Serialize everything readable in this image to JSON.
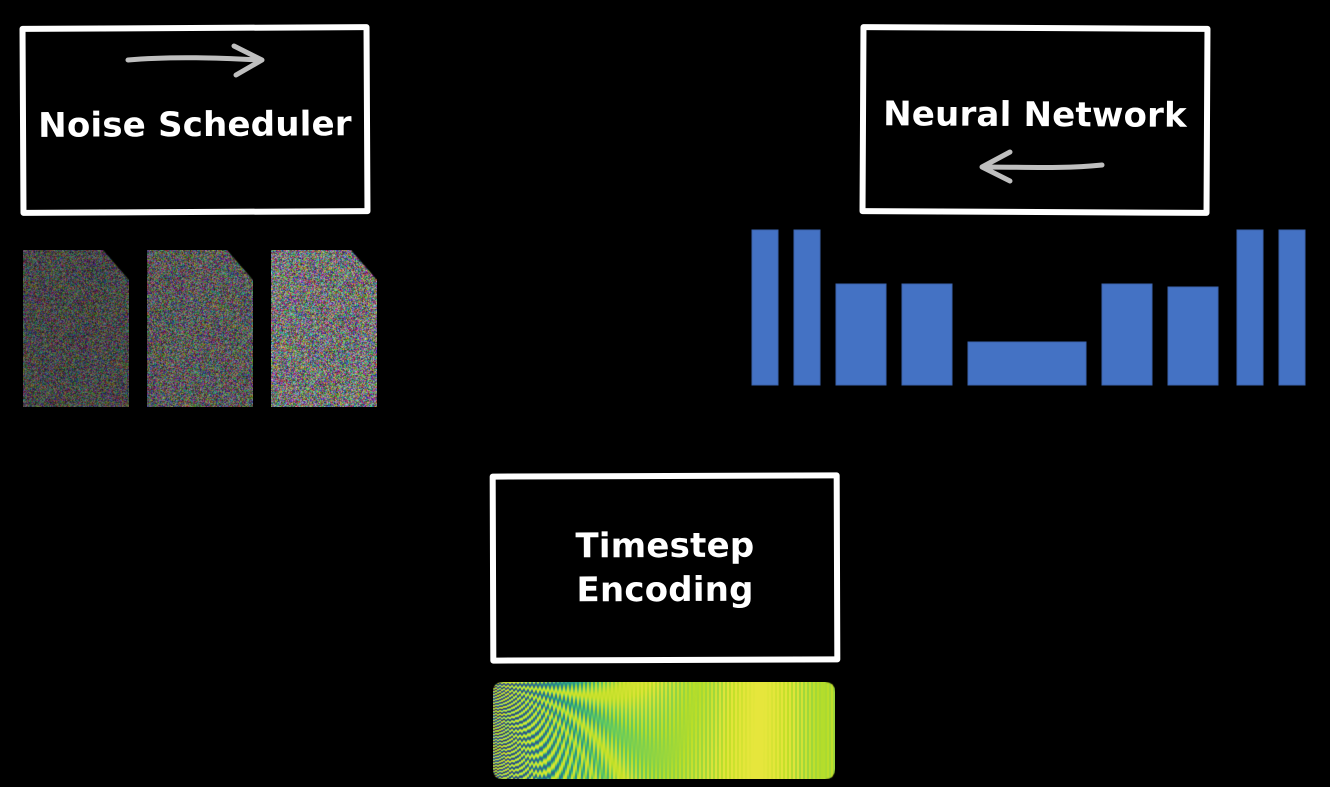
{
  "noise_scheduler": {
    "label": "Noise Scheduler",
    "arrow_direction": "right",
    "noise_levels": [
      0.35,
      0.55,
      0.85
    ]
  },
  "neural_network": {
    "label": "Neural Network",
    "arrow_direction": "left",
    "block_color": "#4472c4",
    "block_heights": [
      1.0,
      1.0,
      0.65,
      0.65,
      0.28,
      0.65,
      0.63,
      1.0,
      1.0
    ]
  },
  "timestep_encoding": {
    "label": "Timestep\nEncoding",
    "colormap": "viridis"
  },
  "colors": {
    "background": "#000000",
    "foreground": "#ffffff",
    "arrow": "#bfbfbf"
  }
}
